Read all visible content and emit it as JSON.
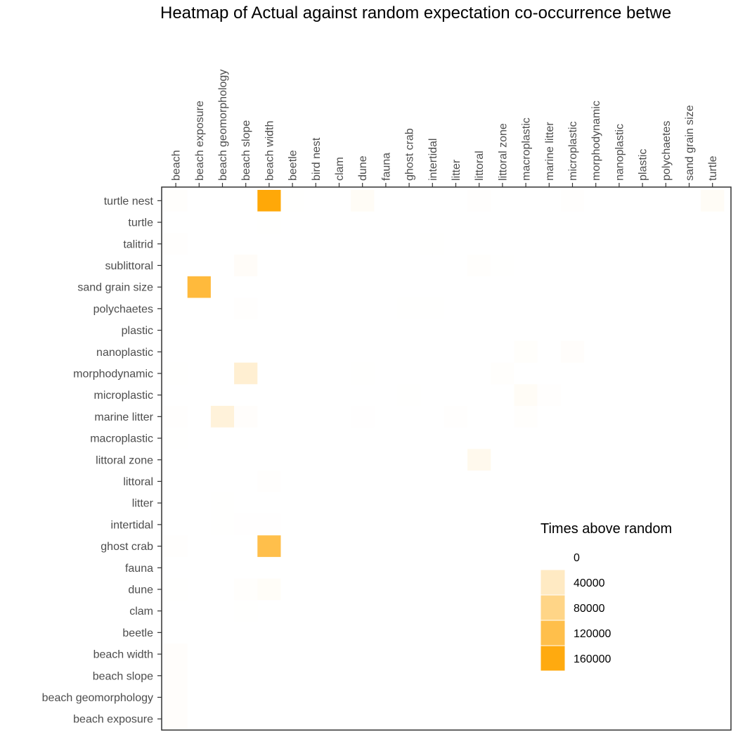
{
  "chart_data": {
    "type": "heatmap",
    "title": "Heatmap of Actual against random expectation co-occurrence betwe",
    "x_categories": [
      "beach",
      "beach exposure",
      "beach geomorphology",
      "beach slope",
      "beach width",
      "beetle",
      "bird nest",
      "clam",
      "dune",
      "fauna",
      "ghost crab",
      "intertidal",
      "litter",
      "littoral",
      "littoral zone",
      "macroplastic",
      "marine litter",
      "microplastic",
      "morphodynamic",
      "nanoplastic",
      "plastic",
      "polychaetes",
      "sand grain size",
      "turtle"
    ],
    "y_categories": [
      "turtle nest",
      "turtle",
      "talitrid",
      "sublittoral",
      "sand grain size",
      "polychaetes",
      "plastic",
      "nanoplastic",
      "morphodynamic",
      "microplastic",
      "marine litter",
      "macroplastic",
      "littoral zone",
      "littoral",
      "litter",
      "intertidal",
      "ghost crab",
      "fauna",
      "dune",
      "clam",
      "beetle",
      "beach width",
      "beach slope",
      "beach geomorphology",
      "beach exposure"
    ],
    "cells": [
      {
        "x": "beach",
        "y": "turtle nest",
        "value": 2000
      },
      {
        "x": "beach width",
        "y": "turtle nest",
        "value": 165000
      },
      {
        "x": "beetle",
        "y": "turtle nest",
        "value": 800
      },
      {
        "x": "dune",
        "y": "turtle nest",
        "value": 6000
      },
      {
        "x": "littoral",
        "y": "turtle nest",
        "value": 1500
      },
      {
        "x": "microplastic",
        "y": "turtle nest",
        "value": 1200
      },
      {
        "x": "turtle",
        "y": "turtle nest",
        "value": 6000
      },
      {
        "x": "beach width",
        "y": "turtle",
        "value": 600
      },
      {
        "x": "beach",
        "y": "talitrid",
        "value": 1200
      },
      {
        "x": "intertidal",
        "y": "talitrid",
        "value": 600
      },
      {
        "x": "beach slope",
        "y": "sublittoral",
        "value": 5000
      },
      {
        "x": "littoral",
        "y": "sublittoral",
        "value": 2000
      },
      {
        "x": "littoral zone",
        "y": "sublittoral",
        "value": 600
      },
      {
        "x": "beach exposure",
        "y": "sand grain size",
        "value": 130000
      },
      {
        "x": "beach slope",
        "y": "polychaetes",
        "value": 1500
      },
      {
        "x": "ghost crab",
        "y": "polychaetes",
        "value": 600
      },
      {
        "x": "intertidal",
        "y": "polychaetes",
        "value": 600
      },
      {
        "x": "macroplastic",
        "y": "nanoplastic",
        "value": 2500
      },
      {
        "x": "microplastic",
        "y": "nanoplastic",
        "value": 3000
      },
      {
        "x": "beach slope",
        "y": "morphodynamic",
        "value": 30000
      },
      {
        "x": "dune",
        "y": "morphodynamic",
        "value": 800
      },
      {
        "x": "littoral zone",
        "y": "morphodynamic",
        "value": 2000
      },
      {
        "x": "beach",
        "y": "morphodynamic",
        "value": 500
      },
      {
        "x": "macroplastic",
        "y": "microplastic",
        "value": 6000
      },
      {
        "x": "marine litter",
        "y": "microplastic",
        "value": 1500
      },
      {
        "x": "ghost crab",
        "y": "microplastic",
        "value": 500
      },
      {
        "x": "beach",
        "y": "marine litter",
        "value": 1500
      },
      {
        "x": "beach geomorphology",
        "y": "marine litter",
        "value": 25000
      },
      {
        "x": "beach slope",
        "y": "marine litter",
        "value": 3000
      },
      {
        "x": "dune",
        "y": "marine litter",
        "value": 1000
      },
      {
        "x": "litter",
        "y": "marine litter",
        "value": 1200
      },
      {
        "x": "macroplastic",
        "y": "marine litter",
        "value": 2000
      },
      {
        "x": "beach",
        "y": "macroplastic",
        "value": 800
      },
      {
        "x": "littoral",
        "y": "littoral zone",
        "value": 12000
      },
      {
        "x": "beach width",
        "y": "littoral",
        "value": 1500
      },
      {
        "x": "beach geomorphology",
        "y": "litter",
        "value": 500
      },
      {
        "x": "beach geomorphology",
        "y": "intertidal",
        "value": 600
      },
      {
        "x": "beach slope",
        "y": "intertidal",
        "value": 1000
      },
      {
        "x": "beach width",
        "y": "intertidal",
        "value": 1000
      },
      {
        "x": "beach",
        "y": "ghost crab",
        "value": 1500
      },
      {
        "x": "beach width",
        "y": "ghost crab",
        "value": 120000
      },
      {
        "x": "beach",
        "y": "dune",
        "value": 800
      },
      {
        "x": "beach slope",
        "y": "dune",
        "value": 2000
      },
      {
        "x": "beach width",
        "y": "dune",
        "value": 4500
      },
      {
        "x": "beach slope",
        "y": "clam",
        "value": 800
      },
      {
        "x": "beach",
        "y": "beach width",
        "value": 3000
      },
      {
        "x": "beach",
        "y": "beach slope",
        "value": 3000
      },
      {
        "x": "beach",
        "y": "beach geomorphology",
        "value": 3000
      },
      {
        "x": "beach",
        "y": "beach exposure",
        "value": 3000
      }
    ],
    "legend": {
      "title": "Times above random",
      "breaks": [
        0,
        40000,
        80000,
        120000,
        160000
      ],
      "labels": [
        "0",
        "40000",
        "80000",
        "120000",
        "160000"
      ],
      "placement": "bottom-right inside panel"
    },
    "color_low": "#ffffff",
    "color_high": "#ffa500",
    "value_range": [
      0,
      170000
    ],
    "grid": false
  }
}
